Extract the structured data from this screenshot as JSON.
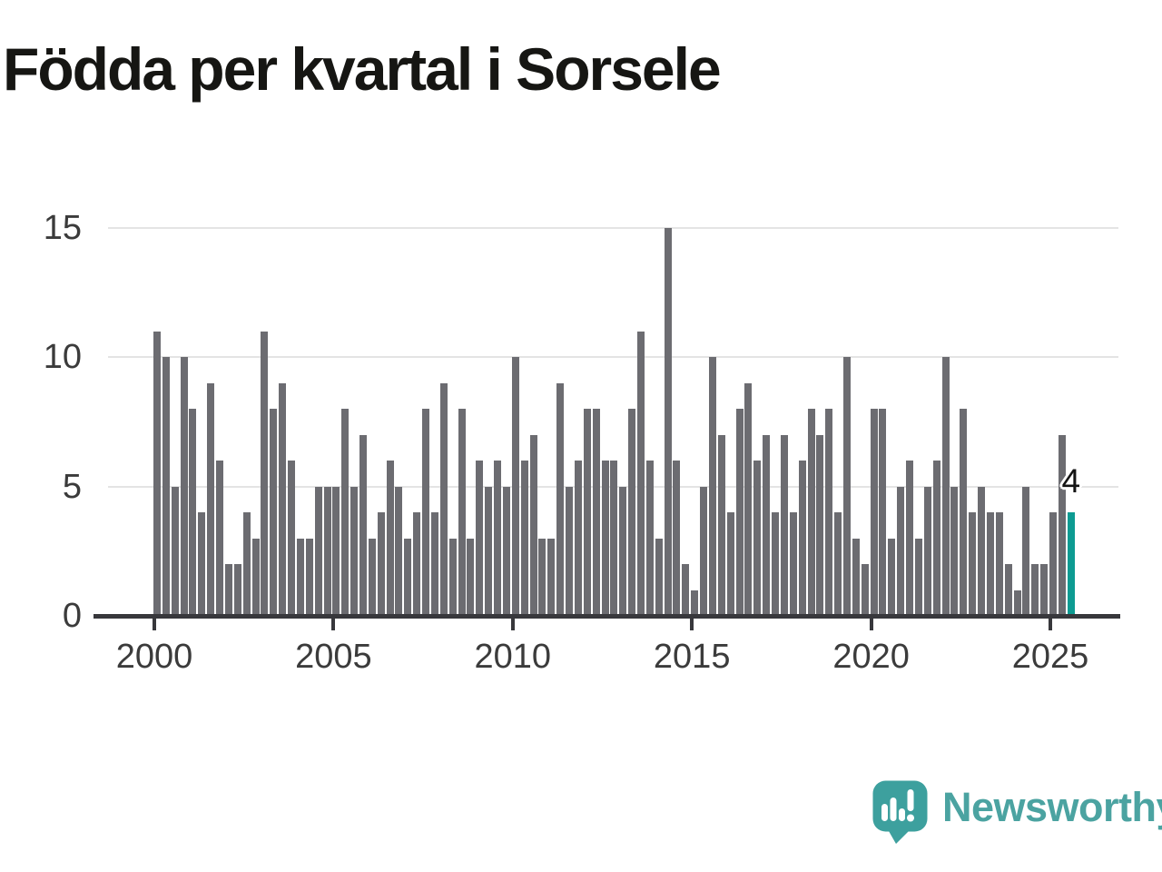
{
  "title": "Födda per kvartal i Sorsele",
  "chart_data": {
    "type": "bar",
    "title": "Födda per kvartal i Sorsele",
    "x_unit": "quarter",
    "start_year": 2000,
    "start_quarter": 1,
    "end_year": 2025,
    "end_quarter": 3,
    "values": [
      11,
      10,
      5,
      10,
      8,
      4,
      9,
      6,
      2,
      2,
      4,
      3,
      11,
      8,
      9,
      6,
      3,
      3,
      5,
      5,
      5,
      8,
      5,
      7,
      3,
      4,
      6,
      5,
      3,
      4,
      8,
      4,
      9,
      3,
      8,
      3,
      6,
      5,
      6,
      5,
      10,
      6,
      7,
      3,
      3,
      9,
      5,
      6,
      8,
      8,
      6,
      6,
      5,
      8,
      11,
      6,
      3,
      15,
      6,
      2,
      1,
      5,
      10,
      7,
      4,
      8,
      9,
      6,
      7,
      4,
      7,
      4,
      6,
      8,
      7,
      8,
      4,
      10,
      3,
      2,
      8,
      8,
      3,
      5,
      6,
      3,
      5,
      6,
      10,
      5,
      8,
      4,
      5,
      4,
      4,
      2,
      1,
      5,
      2,
      2,
      4,
      7,
      4
    ],
    "highlight_last_bar": true,
    "annotation": {
      "text": "4",
      "target": "last-bar"
    },
    "ylim": [
      0,
      15
    ],
    "yticks": [
      0,
      5,
      10,
      15
    ],
    "xticks": [
      "2000",
      "2005",
      "2010",
      "2015",
      "2020",
      "2025"
    ],
    "grid": "horizontal",
    "legend": "none",
    "colors": {
      "bar": "#6c6c71",
      "highlight": "#0d9b92",
      "grid": "#e4e4e4",
      "axis": "#38383c",
      "tick_label": "#3b3b3b",
      "title": "#161613"
    }
  },
  "logo": {
    "text": "Newsworthy",
    "color": "#4ba3a1",
    "icon": "newsworthy-speech-bubble-bar-chart-icon"
  }
}
